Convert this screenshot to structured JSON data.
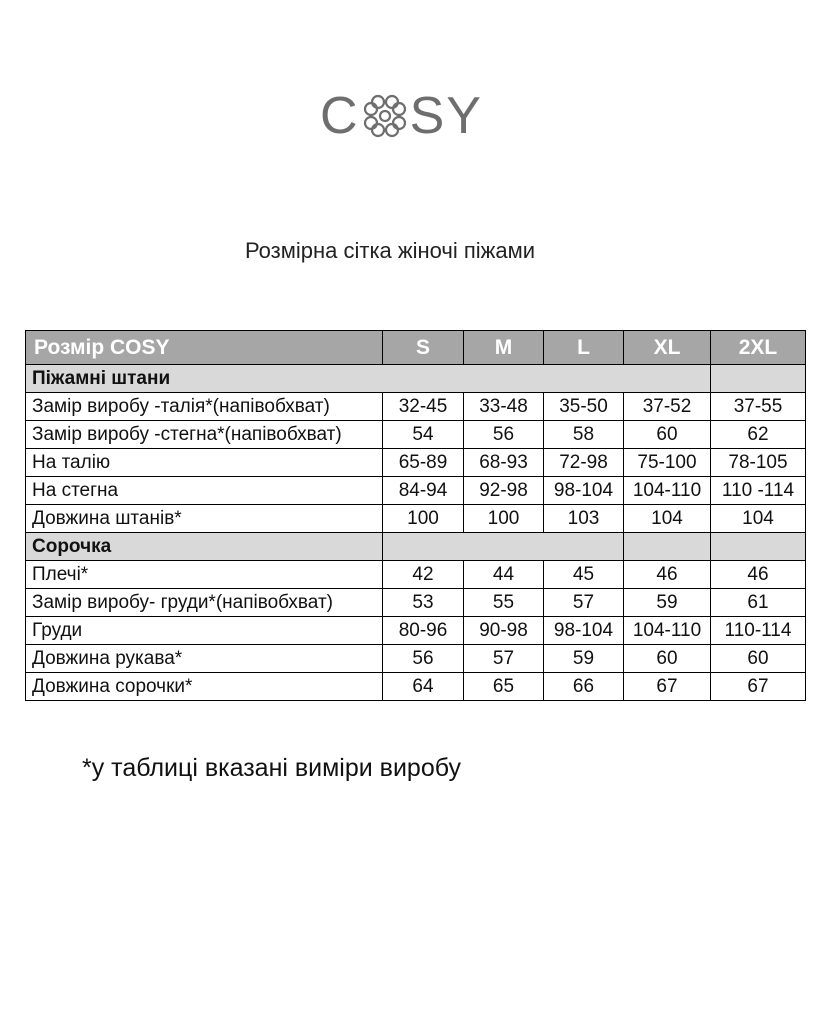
{
  "logo": {
    "text": "COSY",
    "color": "#6e6e6e"
  },
  "title": "Розмірна сітка жіночі піжами",
  "table": {
    "headers": [
      "Розмір COSY",
      "S",
      "M",
      "L",
      "XL",
      "2XL"
    ],
    "sections": [
      {
        "name": "Піжамні штани",
        "rows": [
          {
            "label": "Замір виробу -талія*(напівобхват)",
            "values": [
              "32-45",
              "33-48",
              "35-50",
              "37-52",
              "37-55"
            ]
          },
          {
            "label": "Замір виробу -стегна*(напівобхват)",
            "values": [
              "54",
              "56",
              "58",
              "60",
              "62"
            ]
          },
          {
            "label": "На талію",
            "values": [
              "65-89",
              "68-93",
              "72-98",
              "75-100",
              "78-105"
            ]
          },
          {
            "label": "На стегна",
            "values": [
              "84-94",
              "92-98",
              "98-104",
              "104-110",
              "110 -114"
            ]
          },
          {
            "label": "Довжина штанів*",
            "values": [
              "100",
              "100",
              "103",
              "104",
              "104"
            ]
          }
        ]
      },
      {
        "name": "Сорочка",
        "rows": [
          {
            "label": "Плечі*",
            "values": [
              "42",
              "44",
              "45",
              "46",
              "46"
            ]
          },
          {
            "label": "Замір виробу- груди*(напівобхват)",
            "values": [
              "53",
              "55",
              "57",
              "59",
              "61"
            ]
          },
          {
            "label": "Груди",
            "values": [
              "80-96",
              "90-98",
              "98-104",
              "104-110",
              "110-114"
            ]
          },
          {
            "label": "Довжина рукава*",
            "values": [
              "56",
              "57",
              "59",
              "60",
              "60"
            ]
          },
          {
            "label": "Довжина сорочки*",
            "values": [
              "64",
              "65",
              "66",
              "67",
              "67"
            ]
          }
        ]
      }
    ],
    "colors": {
      "header_bg": "#a6a6a6",
      "section_bg": "#d9d9d9"
    }
  },
  "footnote": "*у таблиці вказані виміри виробу"
}
